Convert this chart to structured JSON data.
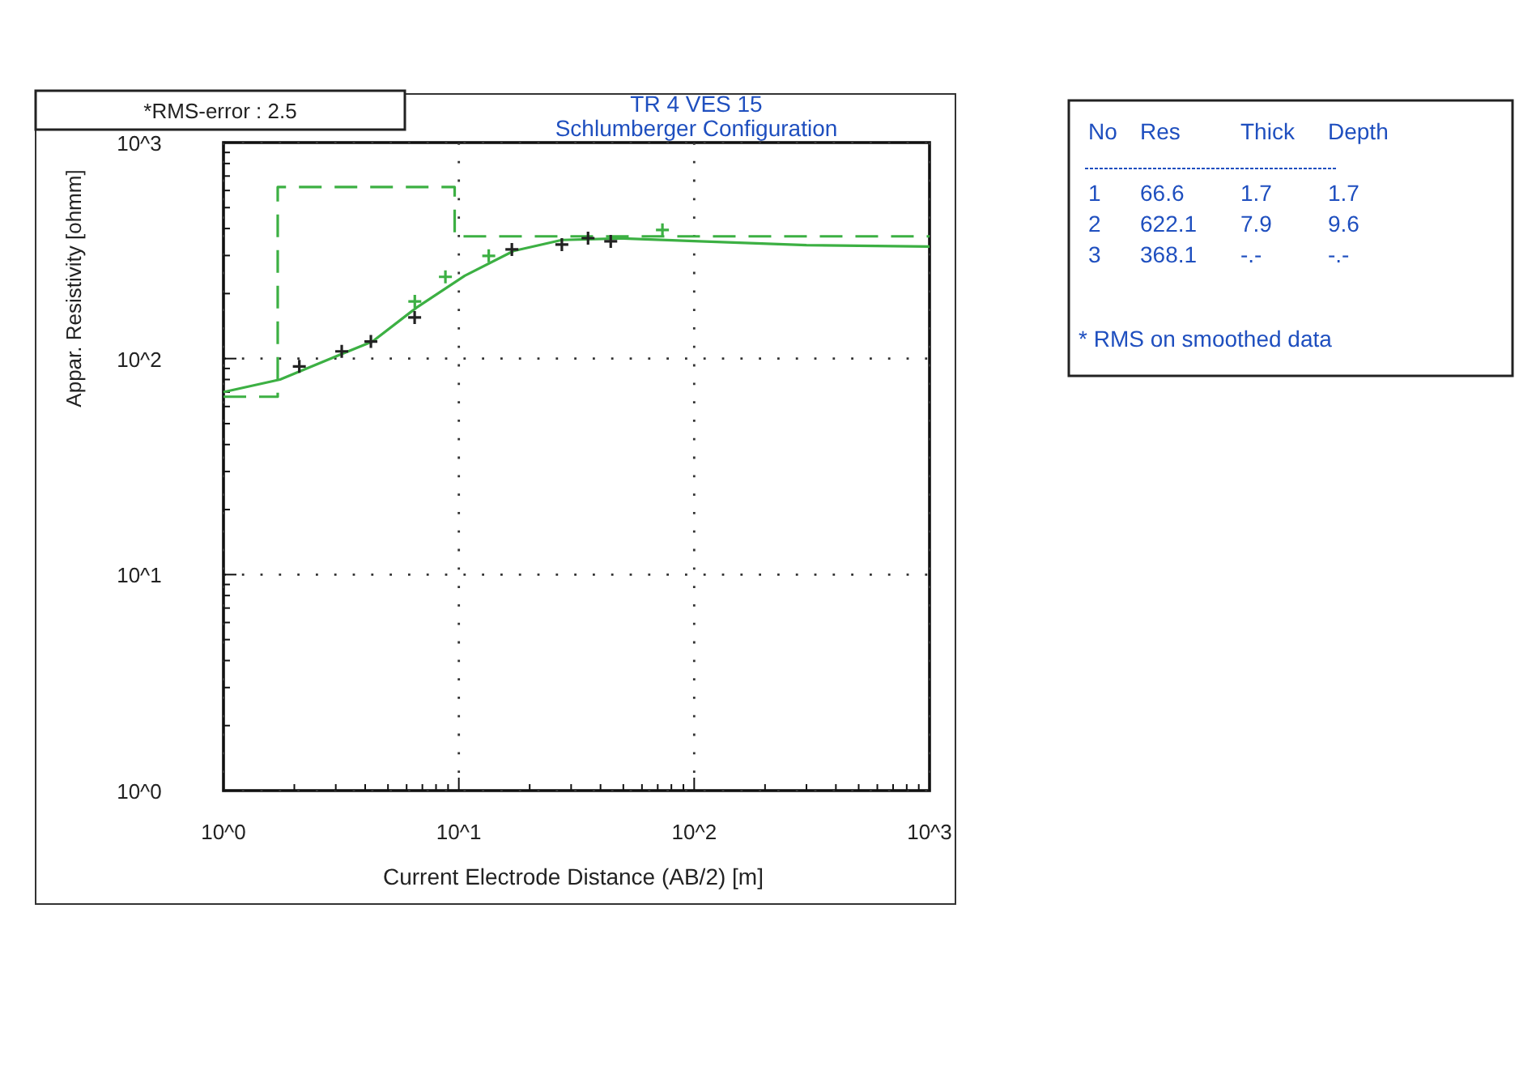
{
  "chart_data": {
    "type": "line",
    "title": "TR 4 VES 15",
    "subtitle": "Schlumberger Configuration",
    "xlabel": "Current Electrode Distance (AB/2) [m]",
    "ylabel": "Appar. Resistivity [ohmm]",
    "log": "xy",
    "xlim": [
      1,
      1000
    ],
    "ylim": [
      1,
      1000
    ],
    "xticks": [
      {
        "value": 1,
        "label": "10^0"
      },
      {
        "value": 10,
        "label": "10^1"
      },
      {
        "value": 100,
        "label": "10^2"
      },
      {
        "value": 1000,
        "label": "10^3"
      }
    ],
    "yticks": [
      {
        "value": 1,
        "label": "10^0"
      },
      {
        "value": 10,
        "label": "10^1"
      },
      {
        "value": 100,
        "label": "10^2"
      },
      {
        "value": 1000,
        "label": "10^3"
      }
    ],
    "grid": true,
    "series": [
      {
        "color": "#3cb043",
        "line_style": "dashed",
        "marker": "none",
        "x": [
          1,
          1.7,
          1.7,
          9.6,
          9.6,
          1000
        ],
        "values": [
          66.6,
          66.6,
          622.1,
          622.1,
          368.1,
          368.1
        ]
      },
      {
        "color": "#3cb043",
        "line_style": "solid",
        "marker": "none",
        "x": [
          1,
          1.74,
          3.18,
          4.3,
          6.6,
          10.6,
          17.1,
          27.4,
          50,
          100,
          300,
          1000
        ],
        "values": [
          70,
          80,
          105,
          120,
          172,
          242,
          315,
          354,
          360,
          350,
          335,
          330
        ]
      },
      {
        "type": "scatter",
        "color": "#222222",
        "marker": "cross",
        "x": [
          2.1,
          3.18,
          4.23,
          6.49,
          16.8,
          27.4,
          35.4,
          44.2
        ],
        "values": [
          92,
          108,
          120,
          155,
          320,
          337,
          361,
          349
        ]
      },
      {
        "type": "scatter",
        "color": "#3cb043",
        "marker": "cross",
        "x": [
          6.5,
          8.77,
          13.4,
          73.3
        ],
        "values": [
          184,
          239,
          299,
          394
        ]
      }
    ],
    "annotations": [
      "*RMS-error :  2.5",
      "No",
      "Res",
      "Thick",
      "Depth",
      "1",
      "66.6",
      "1.7",
      "1.7",
      "2",
      "622.1",
      "7.9",
      "9.6",
      "3",
      "368.1",
      "-.-",
      "-.-",
      "* RMS on smoothed data"
    ]
  }
}
